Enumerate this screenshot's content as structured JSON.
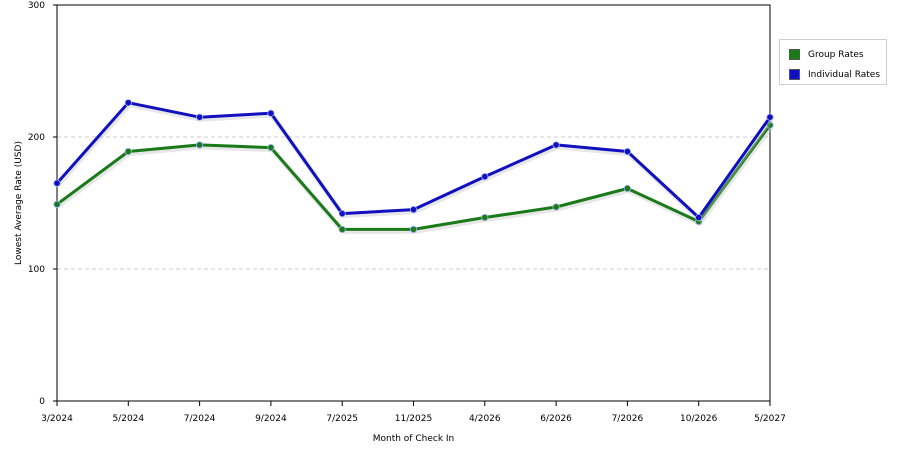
{
  "chart_data": {
    "type": "line",
    "title": "",
    "xlabel": "Month of Check In",
    "ylabel": "Lowest Average Rate (USD)",
    "categories": [
      "3/2024",
      "5/2024",
      "7/2024",
      "9/2024",
      "7/2025",
      "11/2025",
      "4/2026",
      "6/2026",
      "7/2026",
      "10/2026",
      "5/2027"
    ],
    "ylim": [
      0,
      300
    ],
    "yticks": [
      0,
      100,
      200,
      300
    ],
    "grid": "horizontal dashed",
    "legend_position": "right",
    "series": [
      {
        "name": "Group Rates",
        "color": "#1a7a1a",
        "values": [
          149,
          189,
          194,
          192,
          130,
          130,
          139,
          147,
          161,
          136,
          209
        ]
      },
      {
        "name": "Individual Rates",
        "color": "#1010c0",
        "values": [
          165,
          226,
          215,
          218,
          142,
          145,
          170,
          194,
          189,
          139,
          215
        ]
      }
    ]
  }
}
